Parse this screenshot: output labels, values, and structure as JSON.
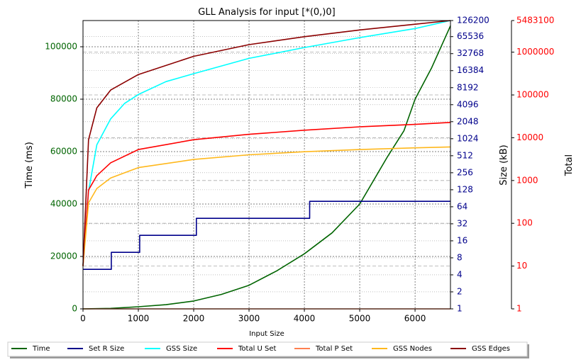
{
  "chart_data": {
    "type": "line",
    "title": "GLL Analysis for input [*(0,)0]",
    "xlabel": "Input Size",
    "xlim": [
      0,
      6640
    ],
    "xticks": [
      0,
      1000,
      2000,
      3000,
      4000,
      5000,
      6000
    ],
    "grid": true,
    "legend_position": "bottom",
    "colors": {
      "time_axis": "#006400",
      "size_axis": "#00008b",
      "total_axis": "#ff0000"
    },
    "axes": {
      "time": {
        "label": "Time (ms)",
        "scale": "linear",
        "range": [
          0,
          110000
        ],
        "ticks": [
          0,
          20000,
          40000,
          60000,
          80000,
          100000
        ]
      },
      "size": {
        "label": "Size (kB)",
        "scale": "log2",
        "range": [
          1,
          126200
        ],
        "ticks": [
          1,
          2,
          4,
          8,
          16,
          32,
          64,
          128,
          256,
          512,
          1024,
          2048,
          4096,
          8192,
          16384,
          32768,
          65536,
          126200
        ]
      },
      "total": {
        "label": "Total",
        "scale": "log10",
        "range": [
          1,
          5483100
        ],
        "ticks": [
          1,
          10,
          100,
          1000,
          10000,
          100000,
          1000000,
          5483100
        ]
      }
    },
    "series": [
      {
        "name": "Time",
        "axis": "time",
        "color": "#006400",
        "x": [
          0,
          500,
          1000,
          1500,
          2000,
          2500,
          3000,
          3500,
          4000,
          4500,
          5000,
          5500,
          5800,
          6000,
          6300,
          6640
        ],
        "y": [
          0,
          200,
          800,
          1600,
          3000,
          5500,
          9000,
          14500,
          21000,
          29000,
          40000,
          58000,
          68000,
          80000,
          92000,
          108000
        ]
      },
      {
        "name": "Set R Size",
        "axis": "size",
        "color": "#00008b",
        "step": true,
        "x": [
          0,
          512,
          1024,
          2048,
          4096,
          6640
        ],
        "y": [
          5,
          10,
          20,
          40,
          80,
          80
        ]
      },
      {
        "name": "GSS Size",
        "axis": "size",
        "color": "#00ffff",
        "x": [
          0,
          100,
          250,
          500,
          750,
          1000,
          1500,
          2000,
          3000,
          4000,
          5000,
          6000,
          6640
        ],
        "y": [
          6,
          120,
          800,
          2300,
          4300,
          6200,
          10500,
          14500,
          27000,
          42000,
          63000,
          91000,
          126200
        ]
      },
      {
        "name": "Total U Set",
        "axis": "total",
        "color": "#ff0000",
        "x": [
          0,
          100,
          250,
          500,
          1000,
          2000,
          3000,
          4000,
          5000,
          6000,
          6640
        ],
        "y": [
          10,
          600,
          1300,
          2600,
          5300,
          9000,
          12000,
          15000,
          18000,
          20500,
          22800
        ]
      },
      {
        "name": "Total P Set",
        "axis": "total",
        "color": "#ff7f50",
        "x": [
          0,
          6640
        ],
        "y": [
          1,
          1
        ]
      },
      {
        "name": "GSS Nodes",
        "axis": "total",
        "color": "#ffb81c",
        "x": [
          0,
          100,
          250,
          500,
          1000,
          2000,
          3000,
          4000,
          5000,
          6000,
          6640
        ],
        "y": [
          10,
          300,
          650,
          1150,
          2000,
          3100,
          4000,
          4700,
          5300,
          5800,
          6100
        ]
      },
      {
        "name": "GSS Edges",
        "axis": "total",
        "color": "#8b0000",
        "x": [
          0,
          100,
          250,
          500,
          1000,
          2000,
          3000,
          4000,
          5000,
          6000,
          6640
        ],
        "y": [
          10,
          9000,
          50000,
          130000,
          300000,
          800000,
          1500000,
          2300000,
          3300000,
          4500000,
          5483100
        ]
      }
    ]
  }
}
